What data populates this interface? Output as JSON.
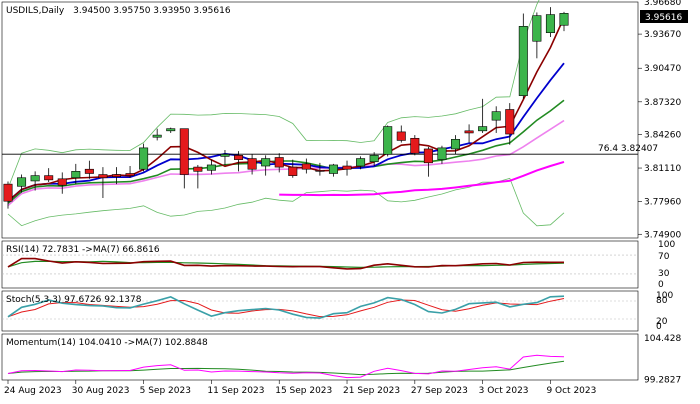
{
  "chart_data": {
    "type": "candlestick",
    "symbol_label": "USDILS,Daily",
    "ohlc_label": "3.94500 3.95750 3.93950 3.95616",
    "colors": {
      "bull": "#3cb44b",
      "bear": "#e41a1c",
      "ma_fast": "#8b0000",
      "ma_mid": "#0000cd",
      "ma_slow": "#228b22",
      "ma_long": "#ff00ff",
      "ma_pink": "#ee82ee",
      "band": "#66bb66",
      "grid": "#bbbbbb",
      "hline": "#000000",
      "last_price_bg": "#000000"
    },
    "price_axis": {
      "ylim": [
        3.7455,
        3.9668
      ],
      "ticks": [
        "3.96680",
        "3.93670",
        "3.90470",
        "3.87320",
        "3.84260",
        "3.81110",
        "3.77960",
        "3.74900"
      ]
    },
    "last_price": "3.95616",
    "horizontal_line": {
      "value": 3.82407,
      "label": "76.4 3.82407"
    },
    "x_axis_labels": [
      "24 Aug 2023",
      "30 Aug 2023",
      "5 Sep 2023",
      "11 Sep 2023",
      "15 Sep 2023",
      "21 Sep 2023",
      "27 Sep 2023",
      "3 Oct 2023",
      "9 Oct 2023"
    ],
    "candles": [
      [
        3.796,
        3.7985,
        3.773,
        3.78
      ],
      [
        3.794,
        3.805,
        3.788,
        3.802
      ],
      [
        3.799,
        3.808,
        3.79,
        3.804
      ],
      [
        3.804,
        3.811,
        3.798,
        3.8
      ],
      [
        3.801,
        3.807,
        3.787,
        3.795
      ],
      [
        3.802,
        3.815,
        3.796,
        3.808
      ],
      [
        3.81,
        3.818,
        3.801,
        3.806
      ],
      [
        3.805,
        3.812,
        3.783,
        3.802
      ],
      [
        3.805,
        3.812,
        3.796,
        3.803
      ],
      [
        3.806,
        3.813,
        3.802,
        3.804
      ],
      [
        3.81,
        3.834,
        3.808,
        3.83
      ],
      [
        3.84,
        3.848,
        3.837,
        3.842
      ],
      [
        3.846,
        3.849,
        3.844,
        3.848
      ],
      [
        3.848,
        3.848,
        3.792,
        3.805
      ],
      [
        3.812,
        3.814,
        3.792,
        3.808
      ],
      [
        3.809,
        3.819,
        3.805,
        3.814
      ],
      [
        3.822,
        3.828,
        3.814,
        3.824
      ],
      [
        3.823,
        3.827,
        3.808,
        3.819
      ],
      [
        3.82,
        3.824,
        3.805,
        3.81
      ],
      [
        3.813,
        3.823,
        3.804,
        3.82
      ],
      [
        3.821,
        3.825,
        3.807,
        3.812
      ],
      [
        3.812,
        3.819,
        3.802,
        3.804
      ],
      [
        3.815,
        3.82,
        3.806,
        3.81
      ],
      [
        3.809,
        3.816,
        3.804,
        3.808
      ],
      [
        3.806,
        3.815,
        3.803,
        3.814
      ],
      [
        3.813,
        3.818,
        3.804,
        3.81
      ],
      [
        3.813,
        3.822,
        3.81,
        3.82
      ],
      [
        3.817,
        3.826,
        3.813,
        3.823
      ],
      [
        3.824,
        3.851,
        3.822,
        3.85
      ],
      [
        3.845,
        3.851,
        3.835,
        3.837
      ],
      [
        3.839,
        3.842,
        3.823,
        3.825
      ],
      [
        3.829,
        3.831,
        3.803,
        3.816
      ],
      [
        3.819,
        3.832,
        3.815,
        3.83
      ],
      [
        3.829,
        3.842,
        3.824,
        3.838
      ],
      [
        3.846,
        3.852,
        3.835,
        3.844
      ],
      [
        3.846,
        3.876,
        3.844,
        3.85
      ],
      [
        3.856,
        3.869,
        3.844,
        3.864
      ],
      [
        3.866,
        3.872,
        3.833,
        3.843
      ],
      [
        3.879,
        3.956,
        3.876,
        3.944
      ],
      [
        3.93,
        3.957,
        3.914,
        3.954
      ],
      [
        3.938,
        3.962,
        3.934,
        3.955
      ],
      [
        3.945,
        3.9575,
        3.9395,
        3.95616
      ]
    ],
    "rsi": {
      "label": "RSI(14) 72.7831 ->MA(7) 66.8616",
      "ylim": [
        0,
        100
      ],
      "ticks": [
        "100",
        "70",
        "30",
        "0"
      ],
      "levels": [
        70,
        30
      ]
    },
    "stoch": {
      "label": "Stoch(5,3,3) 97.6726 92.1378",
      "ylim": [
        0,
        100
      ],
      "ticks": [
        "100",
        "80",
        "20",
        "0"
      ],
      "levels": [
        80,
        20
      ]
    },
    "momentum": {
      "label": "Momentum(14) 104.0410 ->MA(7) 102.8848",
      "ylim": [
        99.2,
        104.9
      ],
      "ticks": [
        "104.428",
        "99.2827"
      ]
    }
  }
}
